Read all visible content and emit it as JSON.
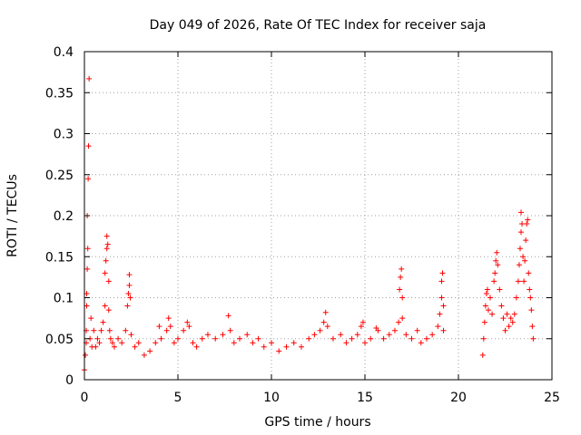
{
  "chart_data": {
    "type": "scatter",
    "title": "Day 049 of 2026, Rate Of TEC Index for receiver saja",
    "xlabel": "GPS time / hours",
    "ylabel": "ROTI / TECUs",
    "xlim": [
      0,
      25
    ],
    "ylim": [
      0,
      0.4
    ],
    "xticks": [
      0,
      5,
      10,
      15,
      20,
      25
    ],
    "xtick_labels": [
      "0",
      "5",
      "10",
      "15",
      "20",
      "25"
    ],
    "yticks": [
      0,
      0.05,
      0.1,
      0.15,
      0.2,
      0.25,
      0.3,
      0.35,
      0.4
    ],
    "ytick_labels": [
      "0",
      "0.05",
      "0.1",
      "0.15",
      "0.2",
      "0.25",
      "0.3",
      "0.35",
      "0.4"
    ],
    "grid": true,
    "marker": "+",
    "color": "#ff0000",
    "series": [
      {
        "points": [
          [
            0.0,
            0.012
          ],
          [
            0.05,
            0.03
          ],
          [
            0.1,
            0.06
          ],
          [
            0.1,
            0.045
          ],
          [
            0.12,
            0.09
          ],
          [
            0.15,
            0.2
          ],
          [
            0.18,
            0.16
          ],
          [
            0.2,
            0.245
          ],
          [
            0.22,
            0.285
          ],
          [
            0.25,
            0.367
          ],
          [
            0.15,
            0.135
          ],
          [
            0.12,
            0.105
          ],
          [
            0.3,
            0.05
          ],
          [
            0.35,
            0.075
          ],
          [
            0.4,
            0.04
          ],
          [
            0.5,
            0.06
          ],
          [
            0.6,
            0.04
          ],
          [
            0.7,
            0.05
          ],
          [
            0.8,
            0.045
          ],
          [
            0.9,
            0.06
          ],
          [
            1.0,
            0.07
          ],
          [
            1.1,
            0.09
          ],
          [
            1.1,
            0.13
          ],
          [
            1.15,
            0.145
          ],
          [
            1.2,
            0.16
          ],
          [
            1.2,
            0.175
          ],
          [
            1.25,
            0.165
          ],
          [
            1.3,
            0.12
          ],
          [
            1.3,
            0.085
          ],
          [
            1.35,
            0.06
          ],
          [
            1.4,
            0.05
          ],
          [
            1.5,
            0.045
          ],
          [
            1.6,
            0.04
          ],
          [
            1.8,
            0.05
          ],
          [
            2.0,
            0.045
          ],
          [
            2.2,
            0.06
          ],
          [
            2.3,
            0.09
          ],
          [
            2.35,
            0.105
          ],
          [
            2.4,
            0.115
          ],
          [
            2.4,
            0.128
          ],
          [
            2.45,
            0.1
          ],
          [
            2.5,
            0.055
          ],
          [
            2.7,
            0.04
          ],
          [
            2.9,
            0.045
          ],
          [
            3.2,
            0.03
          ],
          [
            3.5,
            0.035
          ],
          [
            3.8,
            0.045
          ],
          [
            4.0,
            0.065
          ],
          [
            4.1,
            0.05
          ],
          [
            4.4,
            0.06
          ],
          [
            4.5,
            0.075
          ],
          [
            4.6,
            0.065
          ],
          [
            4.8,
            0.045
          ],
          [
            5.0,
            0.05
          ],
          [
            5.3,
            0.06
          ],
          [
            5.5,
            0.07
          ],
          [
            5.6,
            0.065
          ],
          [
            5.8,
            0.045
          ],
          [
            6.0,
            0.04
          ],
          [
            6.3,
            0.05
          ],
          [
            6.6,
            0.055
          ],
          [
            7.0,
            0.05
          ],
          [
            7.4,
            0.055
          ],
          [
            7.7,
            0.078
          ],
          [
            7.8,
            0.06
          ],
          [
            8.0,
            0.045
          ],
          [
            8.3,
            0.05
          ],
          [
            8.7,
            0.055
          ],
          [
            9.0,
            0.045
          ],
          [
            9.3,
            0.05
          ],
          [
            9.6,
            0.04
          ],
          [
            10.0,
            0.045
          ],
          [
            10.4,
            0.035
          ],
          [
            10.8,
            0.04
          ],
          [
            11.2,
            0.045
          ],
          [
            11.6,
            0.04
          ],
          [
            12.0,
            0.05
          ],
          [
            12.3,
            0.055
          ],
          [
            12.6,
            0.06
          ],
          [
            12.8,
            0.07
          ],
          [
            12.9,
            0.082
          ],
          [
            13.0,
            0.065
          ],
          [
            13.3,
            0.05
          ],
          [
            13.7,
            0.055
          ],
          [
            14.0,
            0.045
          ],
          [
            14.3,
            0.05
          ],
          [
            14.6,
            0.055
          ],
          [
            14.8,
            0.065
          ],
          [
            14.9,
            0.07
          ],
          [
            15.0,
            0.045
          ],
          [
            15.3,
            0.05
          ],
          [
            15.6,
            0.063
          ],
          [
            15.7,
            0.06
          ],
          [
            16.0,
            0.05
          ],
          [
            16.3,
            0.055
          ],
          [
            16.6,
            0.06
          ],
          [
            16.8,
            0.07
          ],
          [
            16.85,
            0.11
          ],
          [
            16.9,
            0.125
          ],
          [
            16.95,
            0.135
          ],
          [
            17.0,
            0.1
          ],
          [
            17.0,
            0.075
          ],
          [
            17.2,
            0.055
          ],
          [
            17.5,
            0.05
          ],
          [
            17.8,
            0.06
          ],
          [
            18.0,
            0.045
          ],
          [
            18.3,
            0.05
          ],
          [
            18.6,
            0.055
          ],
          [
            18.9,
            0.065
          ],
          [
            19.0,
            0.08
          ],
          [
            19.1,
            0.1
          ],
          [
            19.1,
            0.12
          ],
          [
            19.15,
            0.13
          ],
          [
            19.2,
            0.09
          ],
          [
            19.2,
            0.06
          ],
          [
            21.3,
            0.03
          ],
          [
            21.35,
            0.05
          ],
          [
            21.4,
            0.07
          ],
          [
            21.45,
            0.09
          ],
          [
            21.5,
            0.105
          ],
          [
            21.55,
            0.11
          ],
          [
            21.6,
            0.085
          ],
          [
            21.7,
            0.1
          ],
          [
            21.8,
            0.08
          ],
          [
            21.9,
            0.12
          ],
          [
            21.95,
            0.13
          ],
          [
            22.0,
            0.145
          ],
          [
            22.05,
            0.155
          ],
          [
            22.1,
            0.14
          ],
          [
            22.2,
            0.11
          ],
          [
            22.3,
            0.09
          ],
          [
            22.4,
            0.075
          ],
          [
            22.5,
            0.06
          ],
          [
            22.6,
            0.08
          ],
          [
            22.7,
            0.065
          ],
          [
            22.8,
            0.075
          ],
          [
            22.9,
            0.07
          ],
          [
            23.0,
            0.08
          ],
          [
            23.1,
            0.1
          ],
          [
            23.2,
            0.12
          ],
          [
            23.25,
            0.14
          ],
          [
            23.3,
            0.16
          ],
          [
            23.35,
            0.18
          ],
          [
            23.35,
            0.204
          ],
          [
            23.4,
            0.19
          ],
          [
            23.45,
            0.15
          ],
          [
            23.5,
            0.12
          ],
          [
            23.55,
            0.145
          ],
          [
            23.6,
            0.17
          ],
          [
            23.65,
            0.19
          ],
          [
            23.7,
            0.195
          ],
          [
            23.75,
            0.13
          ],
          [
            23.8,
            0.11
          ],
          [
            23.85,
            0.1
          ],
          [
            23.9,
            0.085
          ],
          [
            23.95,
            0.065
          ],
          [
            24.0,
            0.05
          ]
        ]
      }
    ]
  }
}
